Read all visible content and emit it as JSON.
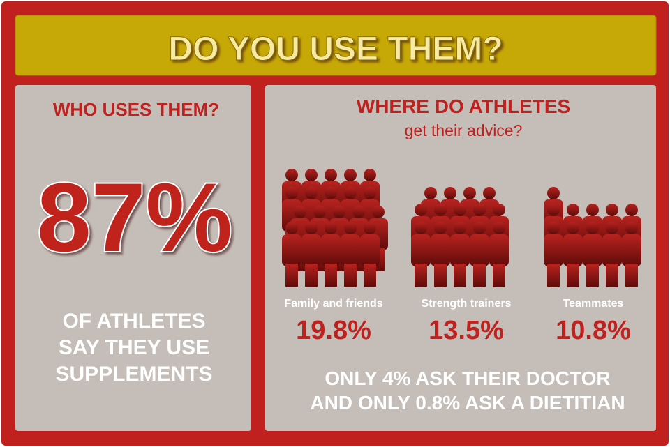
{
  "header": {
    "title": "DO YOU USE THEM?"
  },
  "left": {
    "heading": "WHO USES THEM?",
    "big_stat": "87%",
    "caption_lines": [
      "OF ATHLETES",
      "SAY THEY USE",
      "SUPPLEMENTS"
    ]
  },
  "right": {
    "heading": "WHERE DO ATHLETES",
    "subheading": "get their advice?",
    "groups": [
      {
        "label": "Family and friends",
        "value": "19.8%"
      },
      {
        "label": "Strength trainers",
        "value": "13.5%"
      },
      {
        "label": "Teammates",
        "value": "10.8%"
      }
    ],
    "footnote_lines": [
      "ONLY 4% ASK THEIR DOCTOR",
      "AND ONLY 0.8% ASK A DIETITIAN"
    ]
  }
}
